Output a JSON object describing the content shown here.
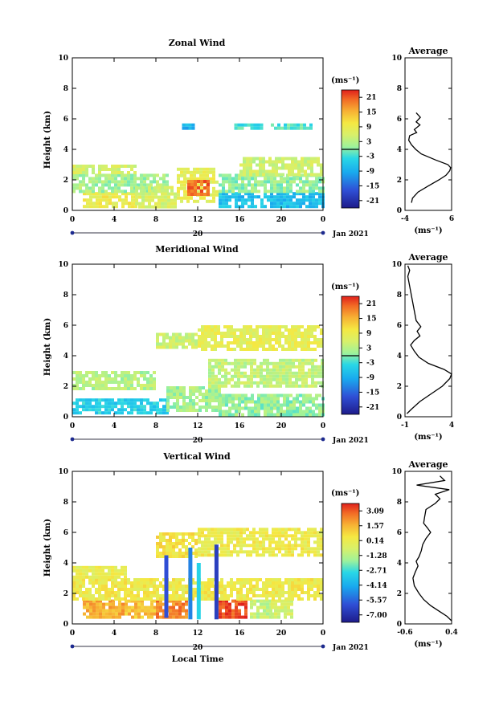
{
  "figure": {
    "local_time_label": "Local Time"
  },
  "chart_data": [
    {
      "type": "heatmap",
      "title": "Zonal Wind",
      "ylabel": "Height (km)",
      "xticks": [
        "0",
        "4",
        "8",
        "12",
        "16",
        "20",
        "0"
      ],
      "date_label": "20",
      "month_label": "Jan 2021",
      "xlim": [
        0,
        24
      ],
      "ylim": [
        0,
        10
      ],
      "yticks": [
        "0",
        "2",
        "4",
        "6",
        "8",
        "10"
      ],
      "colorbar": {
        "unit": "(ms⁻¹)",
        "ticks": [
          "21",
          "15",
          "9",
          "3",
          "-3",
          "-9",
          "-15",
          "-21"
        ],
        "range": [
          -24,
          24
        ]
      },
      "average": {
        "title": "Average",
        "xticks": [
          "-4",
          "6"
        ],
        "xlim": [
          -4,
          6
        ],
        "xlabel": "(ms⁻¹)",
        "heights": [
          0.5,
          0.8,
          1.2,
          1.6,
          2.0,
          2.3,
          2.6,
          2.8,
          3.0,
          3.3,
          3.7,
          4.0,
          4.3,
          4.6,
          4.9,
          5.1,
          5.3,
          5.6,
          5.8,
          6.1,
          6.4
        ],
        "values": [
          -2.6,
          -2.4,
          -1.2,
          1.0,
          3.3,
          4.8,
          5.6,
          5.8,
          5.2,
          2.6,
          -0.5,
          -1.7,
          -2.6,
          -3.2,
          -3.0,
          -1.5,
          -2.0,
          -0.8,
          -1.6,
          -0.7,
          -1.6
        ]
      },
      "areas": [
        {
          "x": [
            1,
            6
          ],
          "y": [
            0.3,
            1.2
          ],
          "v": 9
        },
        {
          "x": [
            0,
            9
          ],
          "y": [
            1.2,
            2.4
          ],
          "v": 2
        },
        {
          "x": [
            0,
            6
          ],
          "y": [
            2.4,
            3.0
          ],
          "v": 6
        },
        {
          "x": [
            6,
            10
          ],
          "y": [
            0.3,
            1.6
          ],
          "v": 6
        },
        {
          "x": [
            10,
            14
          ],
          "y": [
            0.5,
            2.8
          ],
          "v": 8
        },
        {
          "x": [
            14,
            24
          ],
          "y": [
            0.3,
            1.2
          ],
          "v": -7
        },
        {
          "x": [
            14,
            24
          ],
          "y": [
            1.2,
            2.4
          ],
          "v": 1
        },
        {
          "x": [
            16,
            24
          ],
          "y": [
            2.4,
            3.5
          ],
          "v": 5
        },
        {
          "x": [
            15.5,
            18
          ],
          "y": [
            5.3,
            5.7
          ],
          "v": -3
        },
        {
          "x": [
            19,
            23
          ],
          "y": [
            5.3,
            5.7
          ],
          "v": -2
        },
        {
          "x": [
            10.5,
            11.5
          ],
          "y": [
            5.4,
            5.7
          ],
          "v": -8
        },
        {
          "x": [
            11,
            13
          ],
          "y": [
            1.0,
            2.0
          ],
          "v": 20
        }
      ]
    },
    {
      "type": "heatmap",
      "title": "Meridional Wind",
      "ylabel": "Height (km)",
      "xticks": [
        "0",
        "4",
        "8",
        "12",
        "16",
        "20",
        "0"
      ],
      "date_label": "20",
      "month_label": "Jan 2021",
      "xlim": [
        0,
        24
      ],
      "ylim": [
        0,
        10
      ],
      "yticks": [
        "0",
        "2",
        "4",
        "6",
        "8",
        "10"
      ],
      "colorbar": {
        "unit": "(ms⁻¹)",
        "ticks": [
          "21",
          "15",
          "9",
          "3",
          "-3",
          "-9",
          "-15",
          "-21"
        ],
        "range": [
          -24,
          24
        ]
      },
      "average": {
        "title": "Average",
        "xticks": [
          "-1",
          "4"
        ],
        "xlim": [
          -1,
          4
        ],
        "xlabel": "(ms⁻¹)",
        "heights": [
          0.2,
          0.5,
          1.0,
          1.5,
          2.0,
          2.5,
          2.8,
          3.1,
          3.5,
          3.9,
          4.3,
          4.7,
          5.0,
          5.3,
          5.6,
          5.9,
          6.3,
          9.2,
          9.6,
          9.9
        ],
        "values": [
          -0.8,
          -0.3,
          0.6,
          1.8,
          3.0,
          3.8,
          4.0,
          3.2,
          1.5,
          0.5,
          0.0,
          -0.4,
          0.0,
          0.6,
          0.3,
          0.7,
          0.2,
          -0.7,
          -0.5,
          -0.7
        ]
      },
      "areas": [
        {
          "x": [
            0,
            9
          ],
          "y": [
            0.2,
            1.2
          ],
          "v": -5
        },
        {
          "x": [
            0,
            8
          ],
          "y": [
            1.8,
            3.0
          ],
          "v": 3
        },
        {
          "x": [
            9,
            14
          ],
          "y": [
            0.5,
            2.0
          ],
          "v": 2
        },
        {
          "x": [
            14,
            24
          ],
          "y": [
            0.2,
            1.5
          ],
          "v": 1
        },
        {
          "x": [
            13,
            24
          ],
          "y": [
            2.0,
            3.8
          ],
          "v": 4
        },
        {
          "x": [
            12,
            24
          ],
          "y": [
            4.5,
            6.0
          ],
          "v": 8
        },
        {
          "x": [
            8,
            12
          ],
          "y": [
            4.5,
            5.5
          ],
          "v": 5
        }
      ]
    },
    {
      "type": "heatmap",
      "title": "Vertical Wind",
      "ylabel": "Height (km)",
      "xlabel": "Local Time",
      "xticks": [
        "0",
        "4",
        "8",
        "12",
        "16",
        "20",
        "0"
      ],
      "date_label": "20",
      "month_label": "Jan 2021",
      "xlim": [
        0,
        24
      ],
      "ylim": [
        0,
        10
      ],
      "yticks": [
        "0",
        "2",
        "4",
        "6",
        "8",
        "10"
      ],
      "colorbar": {
        "unit": "(ms⁻¹)",
        "ticks": [
          "3.09",
          "1.57",
          "0.14",
          "-1.28",
          "-2.71",
          "-4.14",
          "-5.57",
          "-7.00"
        ],
        "range": [
          -7.7,
          3.8
        ]
      },
      "average": {
        "title": "Average",
        "xticks": [
          "-0.6",
          "0.4"
        ],
        "xlim": [
          -0.6,
          0.4
        ],
        "xlabel": "(ms⁻¹)",
        "heights": [
          0.2,
          0.5,
          0.8,
          1.2,
          1.6,
          2.0,
          2.5,
          3.0,
          3.4,
          3.8,
          4.1,
          4.4,
          4.8,
          5.2,
          5.6,
          6.0,
          6.3,
          6.6,
          7.0,
          7.5,
          7.9,
          8.2,
          8.5,
          8.8,
          9.1,
          9.4,
          9.7
        ],
        "values": [
          0.4,
          0.3,
          0.15,
          -0.05,
          -0.2,
          -0.3,
          -0.4,
          -0.43,
          -0.38,
          -0.32,
          -0.36,
          -0.3,
          -0.25,
          -0.22,
          -0.15,
          -0.05,
          -0.12,
          -0.2,
          -0.18,
          -0.15,
          0.05,
          0.15,
          0.05,
          0.35,
          -0.35,
          0.25,
          0.15
        ]
      },
      "areas": [
        {
          "x": [
            1,
            5
          ],
          "y": [
            0.5,
            1.6
          ],
          "v": 1.8
        },
        {
          "x": [
            5,
            8
          ],
          "y": [
            0.5,
            1.6
          ],
          "v": 1.4
        },
        {
          "x": [
            8,
            11
          ],
          "y": [
            0.5,
            1.6
          ],
          "v": 2.4
        },
        {
          "x": [
            14,
            16.5
          ],
          "y": [
            0.5,
            1.6
          ],
          "v": 3.2
        },
        {
          "x": [
            17,
            19
          ],
          "y": [
            0.5,
            1.6
          ],
          "v": -1.0
        },
        {
          "x": [
            19,
            21
          ],
          "y": [
            0.5,
            1.6
          ],
          "v": -0.5
        },
        {
          "x": [
            0,
            24
          ],
          "y": [
            1.6,
            3.0
          ],
          "v": 0.3
        },
        {
          "x": [
            12,
            24
          ],
          "y": [
            4.5,
            6.3
          ],
          "v": 0.2
        },
        {
          "x": [
            8,
            12
          ],
          "y": [
            4.5,
            6.0
          ],
          "v": 0.6
        },
        {
          "x": [
            0,
            5
          ],
          "y": [
            3.0,
            3.8
          ],
          "v": 0.1
        }
      ],
      "streaks": [
        {
          "x": 9.0,
          "y": [
            0.4,
            4.5
          ],
          "v": -6
        },
        {
          "x": 11.3,
          "y": [
            0.3,
            5.0
          ],
          "v": -5
        },
        {
          "x": 12.1,
          "y": [
            0.3,
            4.0
          ],
          "v": -3
        },
        {
          "x": 13.8,
          "y": [
            0.3,
            5.2
          ],
          "v": -6.5
        }
      ]
    }
  ]
}
